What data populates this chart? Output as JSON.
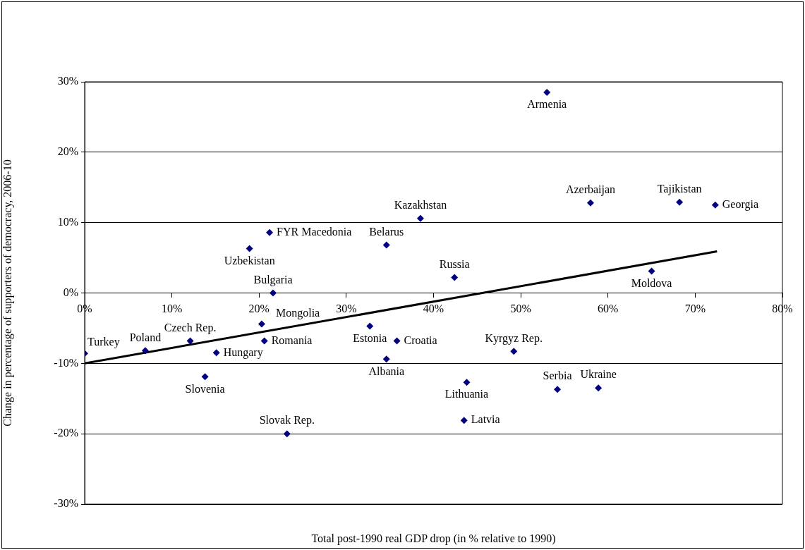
{
  "chart_data": {
    "type": "scatter",
    "xlabel": "Total post-1990 real GDP drop (in % relative to 1990)",
    "ylabel": "Change in percentage of supporters of democracy, 2006-10",
    "series": [
      {
        "type": "scatter",
        "color": "#000080",
        "marker": "diamond",
        "x": [
          0,
          6.95,
          12.1,
          15.1,
          13.8,
          18.9,
          21.2,
          21.6,
          20.3,
          20.6,
          23.2,
          32.7,
          35.8,
          34.6,
          34.6,
          38.5,
          42.4,
          43.8,
          43.5,
          49.2,
          53.0,
          58.0,
          68.2,
          72.3,
          65.0,
          54.2,
          58.9
        ],
        "values": [
          -8.6,
          -8.2,
          -6.8,
          -8.5,
          -11.9,
          6.3,
          8.6,
          0,
          -4.4,
          -6.8,
          -20.0,
          -4.7,
          -6.8,
          -9.4,
          6.8,
          10.6,
          2.2,
          -12.7,
          -18.1,
          -8.3,
          28.5,
          12.8,
          12.9,
          12.5,
          3.1,
          -13.7,
          -13.5
        ]
      },
      {
        "type": "line",
        "color": "#000000",
        "marker": "none",
        "line_style": "solid",
        "x": [
          0,
          72.5
        ],
        "values": [
          -10,
          5.9
        ]
      }
    ],
    "annotations": [
      {
        "text": "Turkey",
        "x": 0,
        "y": -8.6
      },
      {
        "text": "Poland",
        "x": 6.95,
        "y": -8.2
      },
      {
        "text": "Czech Rep.",
        "x": 12.1,
        "y": -6.8
      },
      {
        "text": "Hungary",
        "x": 15.1,
        "y": -8.5
      },
      {
        "text": "Slovenia",
        "x": 13.8,
        "y": -11.9
      },
      {
        "text": "Uzbekistan",
        "x": 18.9,
        "y": 6.3
      },
      {
        "text": "FYR Macedonia",
        "x": 21.2,
        "y": 8.6
      },
      {
        "text": "Bulgaria",
        "x": 21.6,
        "y": 0
      },
      {
        "text": "Mongolia",
        "x": 20.3,
        "y": -4.4
      },
      {
        "text": "Romania",
        "x": 20.6,
        "y": -6.8
      },
      {
        "text": "Slovak Rep.",
        "x": 23.2,
        "y": -20.0
      },
      {
        "text": "Estonia",
        "x": 32.7,
        "y": -4.7
      },
      {
        "text": "Croatia",
        "x": 35.8,
        "y": -6.8
      },
      {
        "text": "Albania",
        "x": 34.6,
        "y": -9.4
      },
      {
        "text": "Belarus",
        "x": 34.6,
        "y": 6.8
      },
      {
        "text": "Kazakhstan",
        "x": 38.5,
        "y": 10.6
      },
      {
        "text": "Russia",
        "x": 42.4,
        "y": 2.2
      },
      {
        "text": "Lithuania",
        "x": 43.8,
        "y": -12.7
      },
      {
        "text": "Latvia",
        "x": 43.5,
        "y": -18.1
      },
      {
        "text": "Kyrgyz Rep.",
        "x": 49.2,
        "y": -8.3
      },
      {
        "text": "Armenia",
        "x": 53.0,
        "y": 28.5
      },
      {
        "text": "Azerbaijan",
        "x": 58.0,
        "y": 12.8
      },
      {
        "text": "Tajikistan",
        "x": 68.2,
        "y": 12.9
      },
      {
        "text": "Georgia",
        "x": 72.3,
        "y": 12.5
      },
      {
        "text": "Moldova",
        "x": 65.0,
        "y": 3.1
      },
      {
        "text": "Serbia",
        "x": 54.2,
        "y": -13.7
      },
      {
        "text": "Ukraine",
        "x": 58.9,
        "y": -13.5
      }
    ],
    "xlim": [
      0,
      80
    ],
    "xticks": [
      {
        "value": 0,
        "label": "0%"
      },
      {
        "value": 10,
        "label": "10%"
      },
      {
        "value": 20,
        "label": "20%"
      },
      {
        "value": 30,
        "label": "30%"
      },
      {
        "value": 40,
        "label": "40%"
      },
      {
        "value": 50,
        "label": "50%"
      },
      {
        "value": 60,
        "label": "60%"
      },
      {
        "value": 70,
        "label": "70%"
      },
      {
        "value": 80,
        "label": "80%"
      }
    ],
    "ylim": [
      -30,
      30
    ],
    "yticks": [
      {
        "value": -30,
        "label": "-30%"
      },
      {
        "value": -20,
        "label": "-20%"
      },
      {
        "value": -10,
        "label": "-10%"
      },
      {
        "value": 0,
        "label": "0%"
      },
      {
        "value": 10,
        "label": "10%"
      },
      {
        "value": 20,
        "label": "20%"
      },
      {
        "value": 30,
        "label": "30%"
      }
    ],
    "grid": "y",
    "legend": false
  }
}
